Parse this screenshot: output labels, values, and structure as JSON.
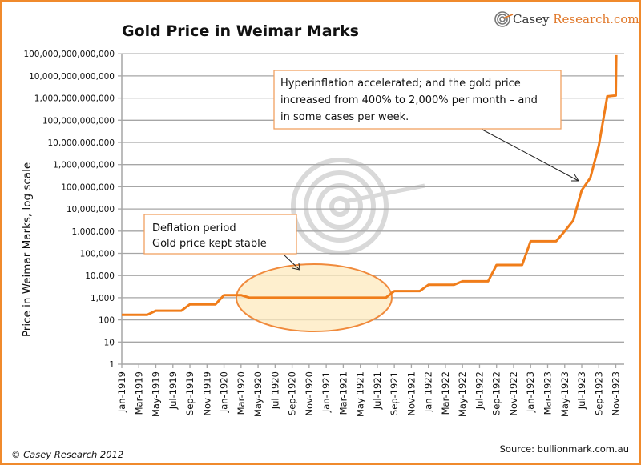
{
  "brand": {
    "name_part1": "Casey ",
    "name_part2": "Research.com",
    "logo_icon": "target-spiral-icon"
  },
  "footer": {
    "copyright": "© Casey Research 2012",
    "source": "Source: bullionmark.com.au"
  },
  "colors": {
    "frame": "#f08a2c",
    "line": "#f07d1a",
    "grid": "#a6a6a6",
    "ellipse_fill": "#fde9bd",
    "ellipse_stroke": "#f08a3c",
    "box_stroke": "#f0a060"
  },
  "annotations": [
    {
      "id": "hyperinflation",
      "lines": [
        "Hyperinflation accelerated; and the gold price",
        "increased from 400% to 2,000% per month – and",
        "in some cases per week."
      ]
    },
    {
      "id": "deflation",
      "lines": [
        "Deflation period",
        "Gold price kept stable"
      ]
    }
  ],
  "chart_data": {
    "type": "line",
    "title": "Gold Price in Weimar Marks",
    "xlabel": "",
    "ylabel": "Price in Weimar Marks, log scale",
    "yscale": "log",
    "ylim": [
      1,
      100000000000000
    ],
    "yticks": [
      "1",
      "10",
      "100",
      "1,000",
      "10,000",
      "100,000",
      "1,000,000",
      "10,000,000",
      "100,000,000",
      "1,000,000,000",
      "10,000,000,000",
      "100,000,000,000",
      "1,000,000,000,000",
      "10,000,000,000,000",
      "100,000,000,000,000"
    ],
    "xticks": [
      "Jan-1919",
      "Mar-1919",
      "May-1919",
      "Jul-1919",
      "Sep-1919",
      "Nov-1919",
      "Jan-1920",
      "Mar-1920",
      "May-1920",
      "Jul-1920",
      "Sep-1920",
      "Nov-1920",
      "Jan-1921",
      "Mar-1921",
      "May-1921",
      "Jul-1921",
      "Sep-1921",
      "Nov-1921",
      "Jan-1922",
      "Mar-1922",
      "May-1922",
      "Jul-1922",
      "Sep-1922",
      "Nov-1922",
      "Jan-1923",
      "Mar-1923",
      "May-1923",
      "Jul-1923",
      "Sep-1923",
      "Nov-1923"
    ],
    "grid": true,
    "series": [
      {
        "name": "Gold price",
        "x_month_index": [
          0,
          1,
          2,
          3,
          4,
          5,
          6,
          7,
          8,
          9,
          10,
          11,
          12,
          13,
          14,
          15,
          16,
          17,
          18,
          19,
          20,
          21,
          22,
          23,
          24,
          25,
          26,
          27,
          28,
          29,
          30,
          31,
          32,
          33,
          34,
          35,
          36,
          37,
          38,
          39,
          40,
          41,
          42,
          43,
          44,
          45,
          46,
          47,
          48,
          49,
          50,
          51,
          52,
          53,
          54,
          55,
          56,
          57,
          57.05,
          58,
          58.05
        ],
        "values": [
          170,
          170,
          170,
          170,
          260,
          260,
          260,
          260,
          500,
          500,
          500,
          500,
          1300,
          1300,
          1300,
          1000,
          1000,
          1000,
          1000,
          1000,
          1000,
          1000,
          1000,
          1000,
          1000,
          1000,
          1000,
          1000,
          1000,
          1000,
          1000,
          1000,
          2000,
          2000,
          2000,
          2000,
          3800,
          3800,
          3800,
          3800,
          5500,
          5500,
          5500,
          5500,
          30000,
          30000,
          30000,
          30000,
          350000,
          350000,
          350000,
          350000,
          1000000,
          3000000,
          70000000,
          250000000,
          7000000000,
          1200000000000,
          1200000000000,
          1300000000000,
          87000000000000
        ]
      }
    ],
    "highlight_ellipse": {
      "from": "Apr-1920",
      "to": "Aug-1921",
      "label": "Deflation period"
    }
  }
}
